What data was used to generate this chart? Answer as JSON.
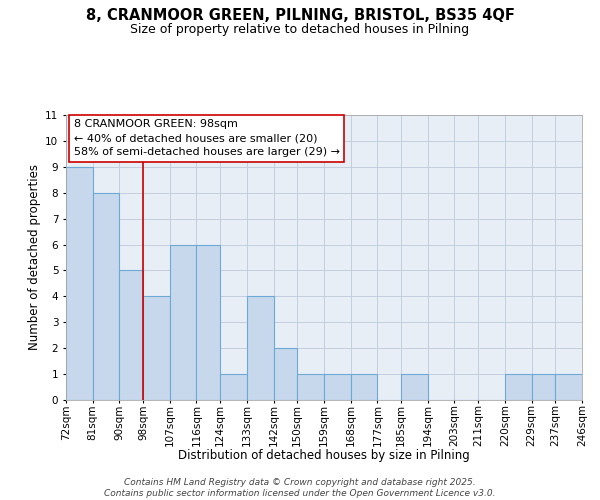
{
  "title": "8, CRANMOOR GREEN, PILNING, BRISTOL, BS35 4QF",
  "subtitle": "Size of property relative to detached houses in Pilning",
  "xlabel": "Distribution of detached houses by size in Pilning",
  "ylabel": "Number of detached properties",
  "bin_edges": [
    72,
    81,
    90,
    98,
    107,
    116,
    124,
    133,
    142,
    150,
    159,
    168,
    177,
    185,
    194,
    203,
    211,
    220,
    229,
    237,
    246
  ],
  "bar_heights": [
    9,
    8,
    5,
    4,
    6,
    6,
    1,
    4,
    2,
    1,
    1,
    1,
    0,
    1,
    0,
    0,
    0,
    1,
    1,
    1
  ],
  "bar_color": "#c8d8ec",
  "bar_edge_color": "#6aaad4",
  "bar_edge_width": 0.8,
  "grid_color": "#c4cedd",
  "background_color": "#e8eef6",
  "red_line_x": 98,
  "red_line_color": "#cc0000",
  "ylim": [
    0,
    11
  ],
  "yticks": [
    0,
    1,
    2,
    3,
    4,
    5,
    6,
    7,
    8,
    9,
    10,
    11
  ],
  "annotation_line1": "8 CRANMOOR GREEN: 98sqm",
  "annotation_line2": "← 40% of detached houses are smaller (20)",
  "annotation_line3": "58% of semi-detached houses are larger (29) →",
  "footnote_line1": "Contains HM Land Registry data © Crown copyright and database right 2025.",
  "footnote_line2": "Contains public sector information licensed under the Open Government Licence v3.0.",
  "title_fontsize": 10.5,
  "subtitle_fontsize": 9,
  "xlabel_fontsize": 8.5,
  "ylabel_fontsize": 8.5,
  "tick_fontsize": 7.5,
  "annotation_fontsize": 8,
  "footnote_fontsize": 6.5
}
